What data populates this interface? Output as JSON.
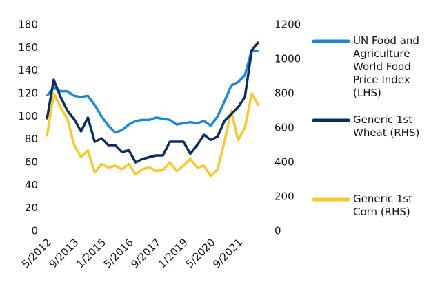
{
  "chart_data": {
    "type": "line",
    "x": [
      "5/2012",
      "9/2012",
      "1/2013",
      "5/2013",
      "9/2013",
      "1/2014",
      "5/2014",
      "9/2014",
      "1/2015",
      "5/2015",
      "9/2015",
      "1/2016",
      "5/2016",
      "9/2016",
      "1/2017",
      "5/2017",
      "9/2017",
      "1/2018",
      "5/2018",
      "9/2018",
      "1/2019",
      "5/2019",
      "9/2019",
      "1/2020",
      "5/2020",
      "9/2020",
      "1/2021",
      "5/2021",
      "9/2021",
      "1/2022",
      "5/2022",
      "9/2022"
    ],
    "xticks": [
      "5/2012",
      "9/2013",
      "1/2015",
      "5/2016",
      "9/2017",
      "1/2019",
      "5/2020",
      "9/2021"
    ],
    "ylim": [
      0,
      180
    ],
    "yticks": [
      0,
      20,
      40,
      60,
      80,
      100,
      120,
      140,
      160,
      180
    ],
    "y2lim": [
      0,
      1200
    ],
    "y2ticks": [
      0,
      200,
      400,
      600,
      800,
      1000,
      1200
    ],
    "series": [
      {
        "name": "UN Food and Agriculture World Food Price Index (LHS)",
        "color": "#1a88d8",
        "values": [
          118,
          125,
          122,
          122,
          118,
          117,
          118,
          110,
          100,
          92,
          86,
          88,
          93,
          96,
          97,
          97,
          99,
          98,
          97,
          93,
          94,
          95,
          94,
          96,
          92,
          100,
          113,
          127,
          130,
          136,
          158,
          157
        ]
      },
      {
        "name": "Generic 1st Wheat (RHS)",
        "color": "#0b2d5b",
        "axis": "y2",
        "values": [
          650,
          880,
          780,
          700,
          650,
          580,
          660,
          520,
          540,
          500,
          500,
          460,
          470,
          400,
          420,
          430,
          440,
          440,
          520,
          520,
          520,
          450,
          500,
          560,
          530,
          550,
          640,
          680,
          720,
          780,
          1050,
          1100
        ]
      },
      {
        "name": "Generic 1st Corn (RHS)",
        "color": "#f9c72e",
        "axis": "y2",
        "values": [
          550,
          800,
          720,
          650,
          500,
          430,
          470,
          340,
          390,
          370,
          380,
          360,
          390,
          330,
          360,
          370,
          350,
          355,
          400,
          350,
          380,
          420,
          370,
          380,
          320,
          360,
          520,
          700,
          530,
          600,
          800,
          730
        ]
      }
    ]
  }
}
